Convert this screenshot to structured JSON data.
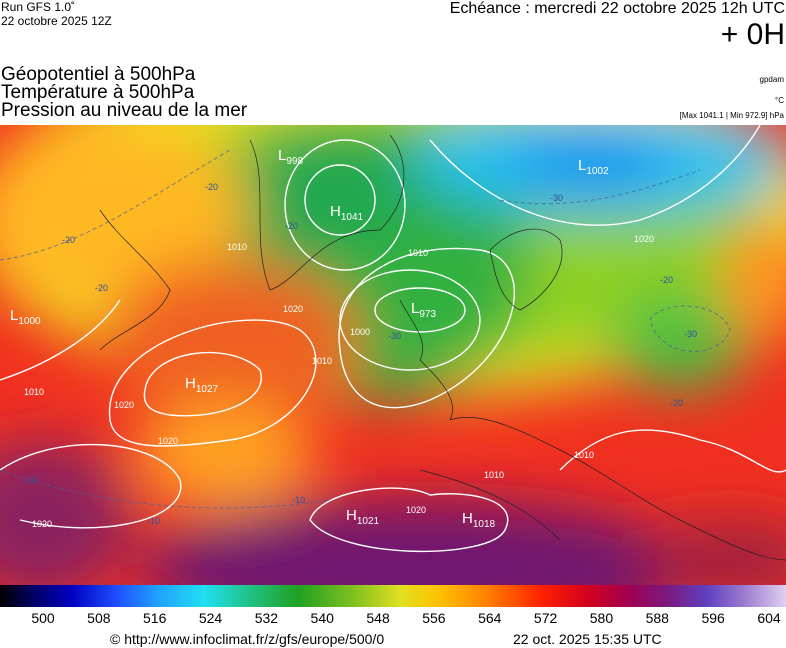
{
  "header": {
    "run": "Run GFS 1.0˚",
    "run_date": "22 octobre 2025 12Z",
    "echeance": "Echéance : mercredi 22 octobre 2025 12h UTC",
    "offset": "+ 0H",
    "fields": [
      "Géopotentiel à 500hPa",
      "Température à 500hPa",
      "Pression au niveau de la mer"
    ],
    "units": [
      "gpdam",
      "°C",
      "[Max 1041.1 | Min 972.9] hPa"
    ]
  },
  "centers": [
    {
      "letter": "L",
      "value": "998"
    },
    {
      "letter": "H",
      "value": "1041"
    },
    {
      "letter": "L",
      "value": "1002"
    },
    {
      "letter": "L",
      "value": "973"
    },
    {
      "letter": "H",
      "value": "1027"
    },
    {
      "letter": "L",
      "value": "1000"
    },
    {
      "letter": "H",
      "value": "1021"
    },
    {
      "letter": "H",
      "value": "1018"
    }
  ],
  "isobar_labels": [
    "1010",
    "1010",
    "1000",
    "1010",
    "1020",
    "1010",
    "1020",
    "1020",
    "1020",
    "1020",
    "1020",
    "1010",
    "1010"
  ],
  "temp_labels": [
    "-20",
    "-20",
    "-20",
    "-30",
    "-20",
    "-30",
    "-20",
    "-30",
    "-10",
    "-10",
    "-10",
    "-20"
  ],
  "scale": {
    "labels": [
      500,
      508,
      516,
      524,
      532,
      540,
      548,
      556,
      564,
      572,
      580,
      588,
      596,
      604
    ]
  },
  "footer": {
    "url": "© http://www.infoclimat.fr/z/gfs/europe/500/0",
    "generated": "22 oct. 2025 15:35 UTC"
  }
}
